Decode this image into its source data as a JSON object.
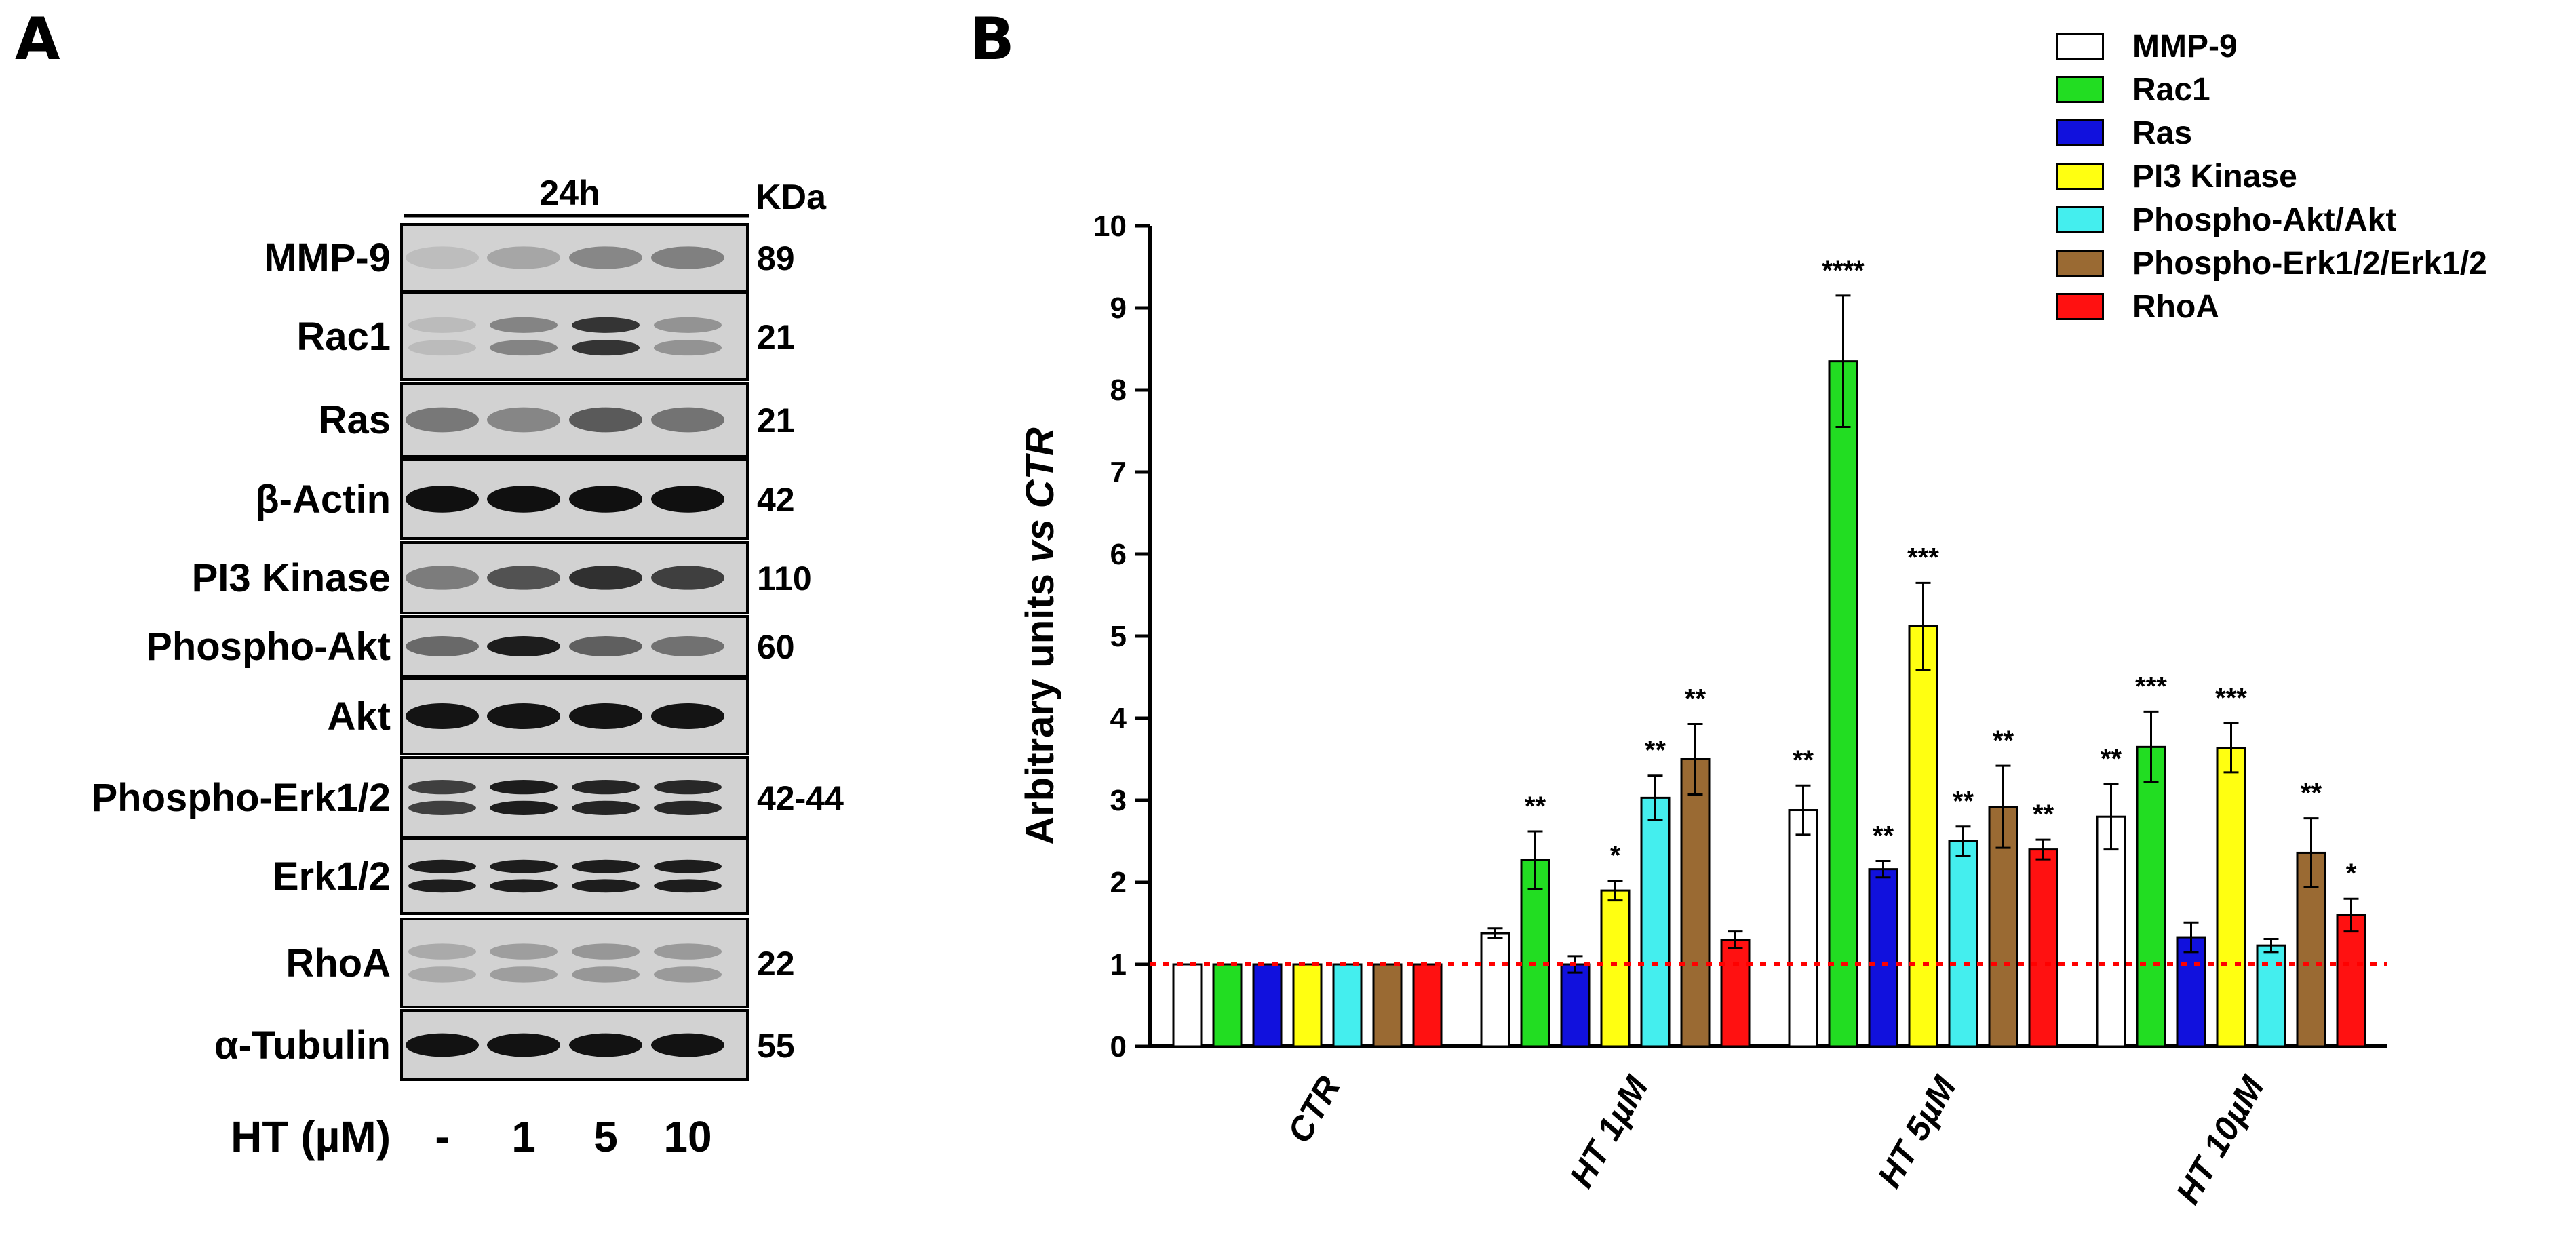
{
  "panel_a": {
    "letter": "A",
    "time_label": "24h",
    "kda_header": "KDa",
    "x_axis_label": "HT (µM)",
    "lane_labels": [
      "-",
      "1",
      "5",
      "10"
    ],
    "blots": [
      {
        "name": "MMP-9",
        "kda": "89",
        "intensity": [
          0.06,
          0.18,
          0.34,
          0.38
        ],
        "bands": 1
      },
      {
        "name": "Rac1",
        "kda": "21",
        "intensity": [
          0.07,
          0.36,
          0.78,
          0.28
        ],
        "bands": 2
      },
      {
        "name": "Ras",
        "kda": "21",
        "intensity": [
          0.42,
          0.35,
          0.58,
          0.45
        ],
        "bands": 1
      },
      {
        "name": "β-Actin",
        "kda": "42",
        "intensity": [
          0.97,
          0.97,
          0.97,
          0.97
        ],
        "bands": 1
      },
      {
        "name": "PI3 Kinase",
        "kda": "110",
        "intensity": [
          0.4,
          0.62,
          0.8,
          0.72
        ],
        "bands": 1
      },
      {
        "name": "Phospho-Akt",
        "kda": "60",
        "intensity": [
          0.5,
          0.9,
          0.55,
          0.46
        ],
        "bands": 1
      },
      {
        "name": "Akt",
        "kda": "",
        "intensity": [
          0.95,
          0.95,
          0.95,
          0.95
        ],
        "bands": 1
      },
      {
        "name": "Phospho-Erk1/2",
        "kda": "42-44",
        "intensity": [
          0.72,
          0.9,
          0.86,
          0.84
        ],
        "bands": 2
      },
      {
        "name": "Erk1/2",
        "kda": "",
        "intensity": [
          0.9,
          0.9,
          0.9,
          0.9
        ],
        "bands": 2
      },
      {
        "name": "RhoA",
        "kda": "22",
        "intensity": [
          0.16,
          0.22,
          0.26,
          0.24
        ],
        "bands": 2
      },
      {
        "name": "α-Tubulin",
        "kda": "55",
        "intensity": [
          0.96,
          0.96,
          0.96,
          0.96
        ],
        "bands": 1
      }
    ]
  },
  "panel_b": {
    "letter": "B"
  },
  "chart_data": {
    "type": "bar",
    "ylabel_prefix": "Arbitrary units ",
    "ylabel_italic": "vs CTR",
    "ylim": [
      0,
      10
    ],
    "yticks": [
      0,
      1,
      2,
      3,
      4,
      5,
      6,
      7,
      8,
      9,
      10
    ],
    "reference_line": 1,
    "reference_color": "#ff0000",
    "categories": [
      "CTR",
      "HT 1µM",
      "HT 5µM",
      "HT 10µM"
    ],
    "series": [
      {
        "name": "MMP-9",
        "color": "#ffffff",
        "values": [
          1,
          1.38,
          2.88,
          2.8
        ],
        "errors": [
          0,
          0.06,
          0.3,
          0.4
        ],
        "stars": [
          "",
          "",
          "**",
          "**"
        ]
      },
      {
        "name": "Rac1",
        "color": "#22dd22",
        "values": [
          1,
          2.27,
          8.35,
          3.65
        ],
        "errors": [
          0,
          0.35,
          0.8,
          0.43
        ],
        "stars": [
          "",
          "**",
          "****",
          "***"
        ]
      },
      {
        "name": "Ras",
        "color": "#1111dd",
        "values": [
          1,
          1.0,
          2.16,
          1.33
        ],
        "errors": [
          0,
          0.1,
          0.1,
          0.18
        ],
        "stars": [
          "",
          "",
          "**",
          ""
        ]
      },
      {
        "name": "PI3 Kinase",
        "color": "#ffff11",
        "values": [
          1,
          1.9,
          5.12,
          3.64
        ],
        "errors": [
          0,
          0.12,
          0.53,
          0.3
        ],
        "stars": [
          "",
          "*",
          "***",
          "***"
        ]
      },
      {
        "name": "Phospho-Akt/Akt",
        "color": "#44eeee",
        "values": [
          1,
          3.03,
          2.5,
          1.23
        ],
        "errors": [
          0,
          0.27,
          0.18,
          0.08
        ],
        "stars": [
          "",
          "**",
          "**",
          ""
        ]
      },
      {
        "name": "Phospho-Erk1/2/Erk1/2",
        "color": "#9a6a33",
        "values": [
          1,
          3.5,
          2.92,
          2.36
        ],
        "errors": [
          0,
          0.43,
          0.5,
          0.42
        ],
        "stars": [
          "",
          "**",
          "**",
          "**"
        ]
      },
      {
        "name": "RhoA",
        "color": "#ff1111",
        "values": [
          1,
          1.3,
          2.4,
          1.6
        ],
        "errors": [
          0,
          0.1,
          0.12,
          0.2
        ],
        "stars": [
          "",
          "",
          "**",
          "*"
        ]
      }
    ]
  }
}
